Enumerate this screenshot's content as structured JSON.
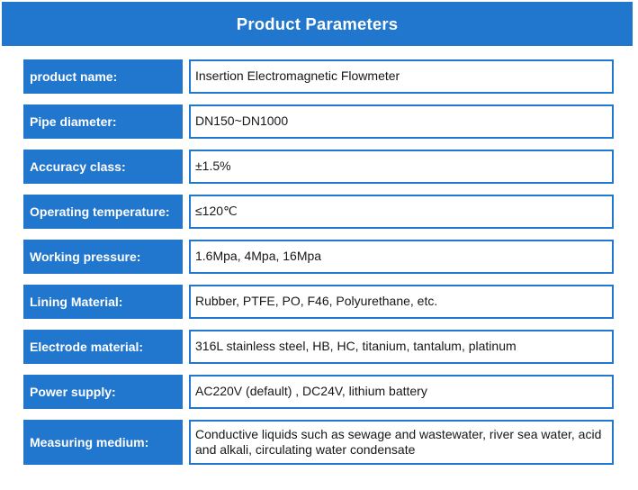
{
  "header": {
    "title": "Product Parameters"
  },
  "colors": {
    "primary_blue": "#2176cd",
    "label_text": "#ffffff",
    "value_text": "#171717",
    "background": "#ffffff"
  },
  "table": {
    "rows": [
      {
        "label": "product name:",
        "value": "Insertion Electromagnetic Flowmeter"
      },
      {
        "label": "Pipe diameter:",
        "value": "DN150~DN1000"
      },
      {
        "label": "Accuracy class:",
        "value": "±1.5%"
      },
      {
        "label": "Operating temperature:",
        "value": "≤120℃"
      },
      {
        "label": "Working pressure:",
        "value": "1.6Mpa, 4Mpa, 16Mpa"
      },
      {
        "label": "Lining Material:",
        "value": "Rubber, PTFE, PO, F46, Polyurethane, etc."
      },
      {
        "label": "Electrode material:",
        "value": "316L stainless steel, HB, HC, titanium, tantalum, platinum"
      },
      {
        "label": "Power supply:",
        "value": "AC220V (default) , DC24V, lithium battery"
      },
      {
        "label": "Measuring medium:",
        "value": "Conductive liquids such as sewage and wastewater, river sea water, acid and alkali, circulating water condensate"
      }
    ]
  }
}
